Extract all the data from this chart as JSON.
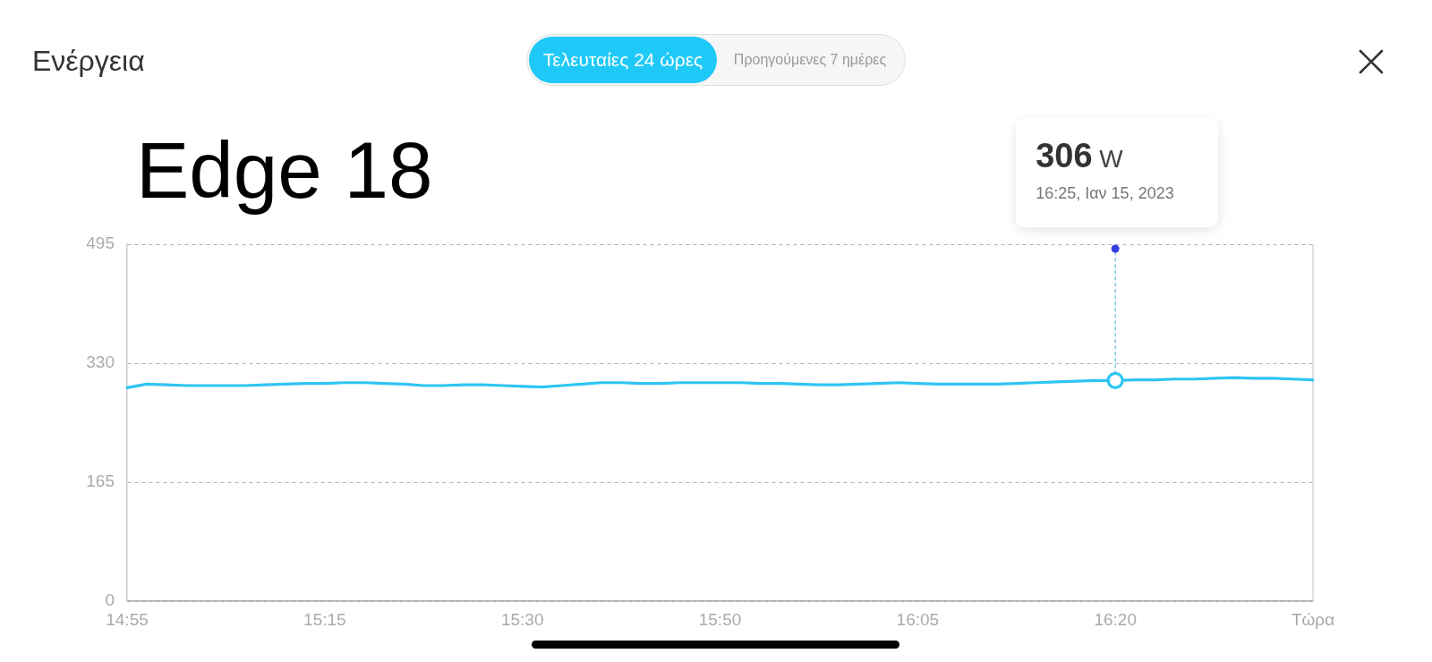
{
  "chart_data": {
    "type": "line",
    "title": "Ενέργεια",
    "subtitle": "Edge 18",
    "annotations": [
      "Τελευταίες 24 ώρες",
      "Προηγούμενες 7 ημέρες",
      "306 W",
      "16:25, Ιαν 15, 2023"
    ],
    "categories": [
      "14:55",
      null,
      null,
      null,
      null,
      null,
      null,
      null,
      null,
      null,
      "15:15",
      null,
      null,
      null,
      null,
      null,
      null,
      null,
      null,
      null,
      "15:30",
      null,
      null,
      null,
      null,
      null,
      null,
      null,
      null,
      null,
      "15:50",
      null,
      null,
      null,
      null,
      null,
      null,
      null,
      null,
      null,
      "16:05",
      null,
      null,
      null,
      null,
      null,
      null,
      null,
      null,
      null,
      "16:20",
      null,
      null,
      null,
      null,
      null,
      null,
      null,
      null,
      null,
      "Τώρα"
    ],
    "series": [
      {
        "color": "#2ec5f2",
        "values": [
          296,
          301,
          300,
          299,
          299,
          299,
          299,
          300,
          301,
          302,
          302,
          303,
          303,
          302,
          301,
          299,
          299,
          300,
          300,
          299,
          298,
          297,
          299,
          301,
          303,
          303,
          302,
          302,
          303,
          303,
          303,
          303,
          302,
          302,
          301,
          300,
          300,
          301,
          302,
          303,
          302,
          301,
          301,
          301,
          301,
          302,
          303,
          304,
          305,
          306,
          306,
          307,
          307,
          308,
          308,
          309,
          310,
          309,
          309,
          308,
          307
        ]
      },
      {
        "type": "scatter",
        "color": "#2ec5f2",
        "marker": "circle",
        "x": [
          "16:20"
        ],
        "values": [
          306
        ]
      }
    ],
    "line_style": "solid",
    "ylim": [
      0,
      495
    ],
    "yticks": [
      0,
      165,
      330,
      495
    ],
    "grid": "y"
  }
}
